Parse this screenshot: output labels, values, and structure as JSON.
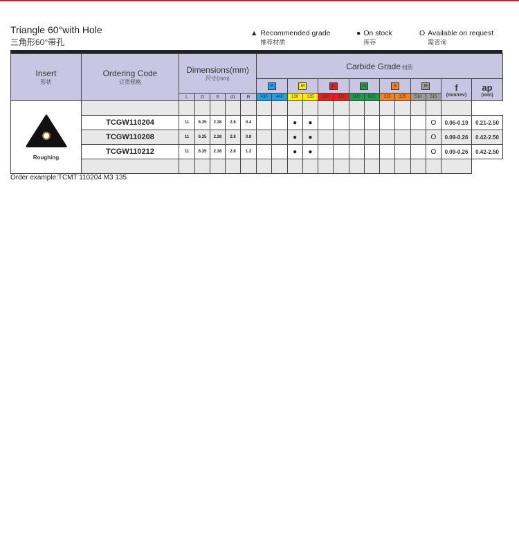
{
  "title": "Triangle 60°with Hole",
  "subtitle": "三角形60°带孔",
  "legend": [
    {
      "symbol": "▲",
      "en": "Recommended grade",
      "cn": "推荐材质"
    },
    {
      "symbol": "●",
      "en": "On stock",
      "cn": "库存"
    },
    {
      "symbol": "O",
      "en": "Available on request",
      "cn": "需咨询"
    }
  ],
  "header": {
    "insert": "Insert",
    "insert_cn": "形状",
    "code": "Ordering Code",
    "code_cn": "订货规格",
    "dims": "Dimensions(mm)",
    "dims_cn": "尺寸(mm)",
    "grade": "Carbide Grade",
    "grade_cn": "材质",
    "f": "f",
    "f_unit": "(mm/rev)",
    "ap": "ap",
    "ap_unit": "(mm)",
    "dim_cols": [
      "L",
      "D",
      "S",
      "d1",
      "R"
    ]
  },
  "groups": [
    {
      "k": "P",
      "color": "#1aa3e0",
      "grades": [
        "430",
        "440"
      ]
    },
    {
      "k": "M",
      "color": "#ffec00",
      "grades": [
        "130",
        "135"
      ]
    },
    {
      "k": "K",
      "color": "#e2201f",
      "grades": [
        "220",
        "225"
      ]
    },
    {
      "k": "N",
      "color": "#1a9e49",
      "grades": [
        "N20",
        "N25"
      ]
    },
    {
      "k": "S",
      "color": "#f5821f",
      "grades": [
        "315",
        "325"
      ]
    },
    {
      "k": "H",
      "color": "#9a9a9a",
      "grades": [
        "510",
        "515"
      ]
    }
  ],
  "insert_label": "Roughing",
  "rows": [
    {
      "code": "TCGW110204",
      "dims": [
        "11",
        "6.35",
        "2.38",
        "2.8",
        "0.4"
      ],
      "marks": [
        "",
        "",
        "●",
        "●",
        "",
        "",
        "",
        "",
        "",
        "",
        "",
        "O"
      ],
      "f": "0.06-0.19",
      "ap": "0.21-2.50"
    },
    {
      "code": "TCGW110208",
      "dims": [
        "11",
        "6.35",
        "2.38",
        "2.8",
        "0.8"
      ],
      "marks": [
        "",
        "",
        "●",
        "●",
        "",
        "",
        "",
        "",
        "",
        "",
        "",
        "O"
      ],
      "f": "0.09-0.26",
      "ap": "0.42-2.50"
    },
    {
      "code": "TCGW110212",
      "dims": [
        "11",
        "6.35",
        "2.38",
        "2.8",
        "1.2"
      ],
      "marks": [
        "",
        "",
        "●",
        "●",
        "",
        "",
        "",
        "",
        "",
        "",
        "",
        "O"
      ],
      "f": "0.09-0.26",
      "ap": "0.42-2.50"
    }
  ],
  "example": "Order example:TCMT 110204 M3 135"
}
